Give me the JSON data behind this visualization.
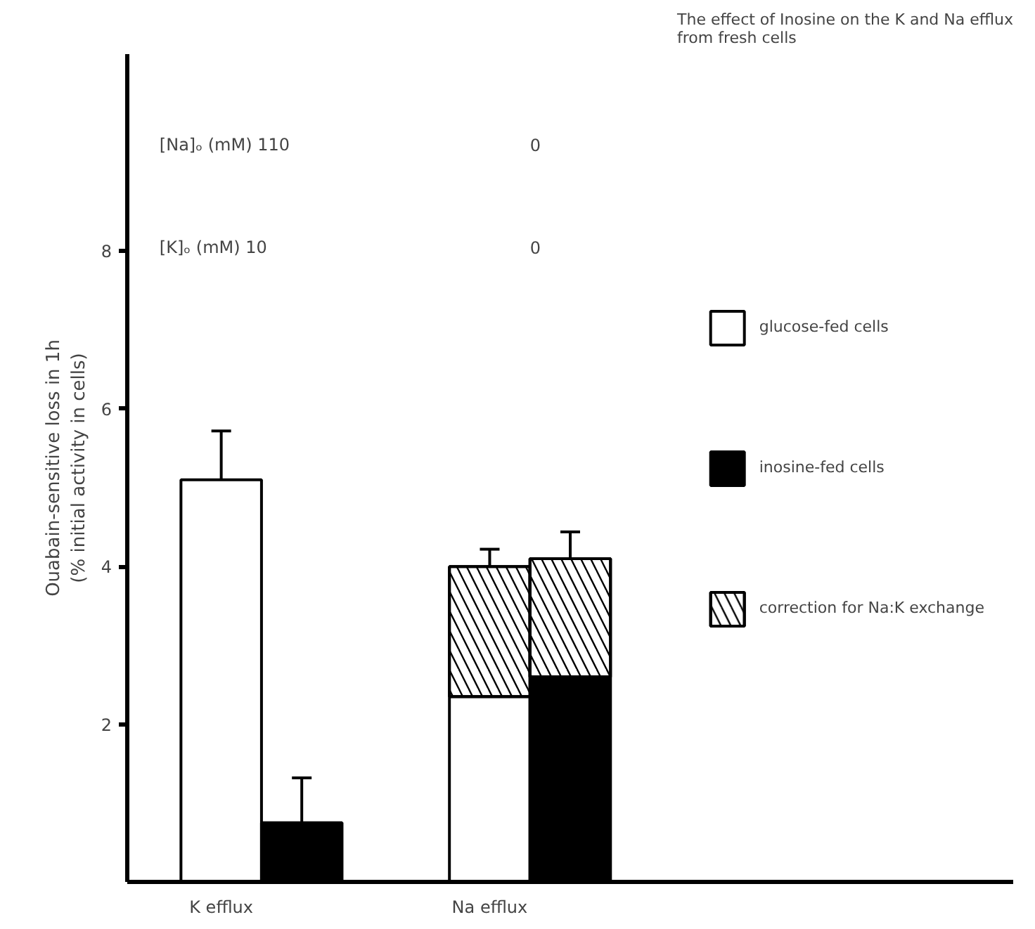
{
  "chart_data": {
    "type": "bar",
    "title": "The effect of Inosine on the K and Na efflux\nfrom fresh cells",
    "ylabel": "Ouabain-sensitive loss in 1h\n(% initial activity in cells)",
    "categories": [
      "K efflux",
      null,
      "Na efflux",
      null
    ],
    "series": [
      {
        "name": "glucose-fed cells",
        "color": "#ffffff",
        "values": [
          5.1,
          null,
          2.35,
          null
        ],
        "errors": [
          [
            5.1,
            5.72
          ],
          null,
          null,
          null
        ]
      },
      {
        "name": "inosine-fed cells",
        "color": "#000000",
        "values": [
          null,
          0.75,
          null,
          2.6
        ],
        "errors": [
          null,
          [
            0.75,
            1.32
          ],
          null,
          null
        ]
      },
      {
        "name": "correction for Na:K exchange",
        "color": "#ffffff",
        "values": [
          null,
          null,
          1.65,
          1.5
        ],
        "errors": [
          null,
          null,
          [
            4.0,
            4.22
          ],
          [
            4.1,
            4.44
          ]
        ]
      }
    ],
    "ylim": [
      0,
      10.5
    ],
    "yticks": [
      2,
      4,
      6,
      8
    ],
    "annotations": [
      "[Na]ₒ (mM)  110",
      "0",
      "[K]ₒ (mM)  10",
      "0"
    ],
    "legend": "right",
    "grid": false,
    "stacked": true
  }
}
